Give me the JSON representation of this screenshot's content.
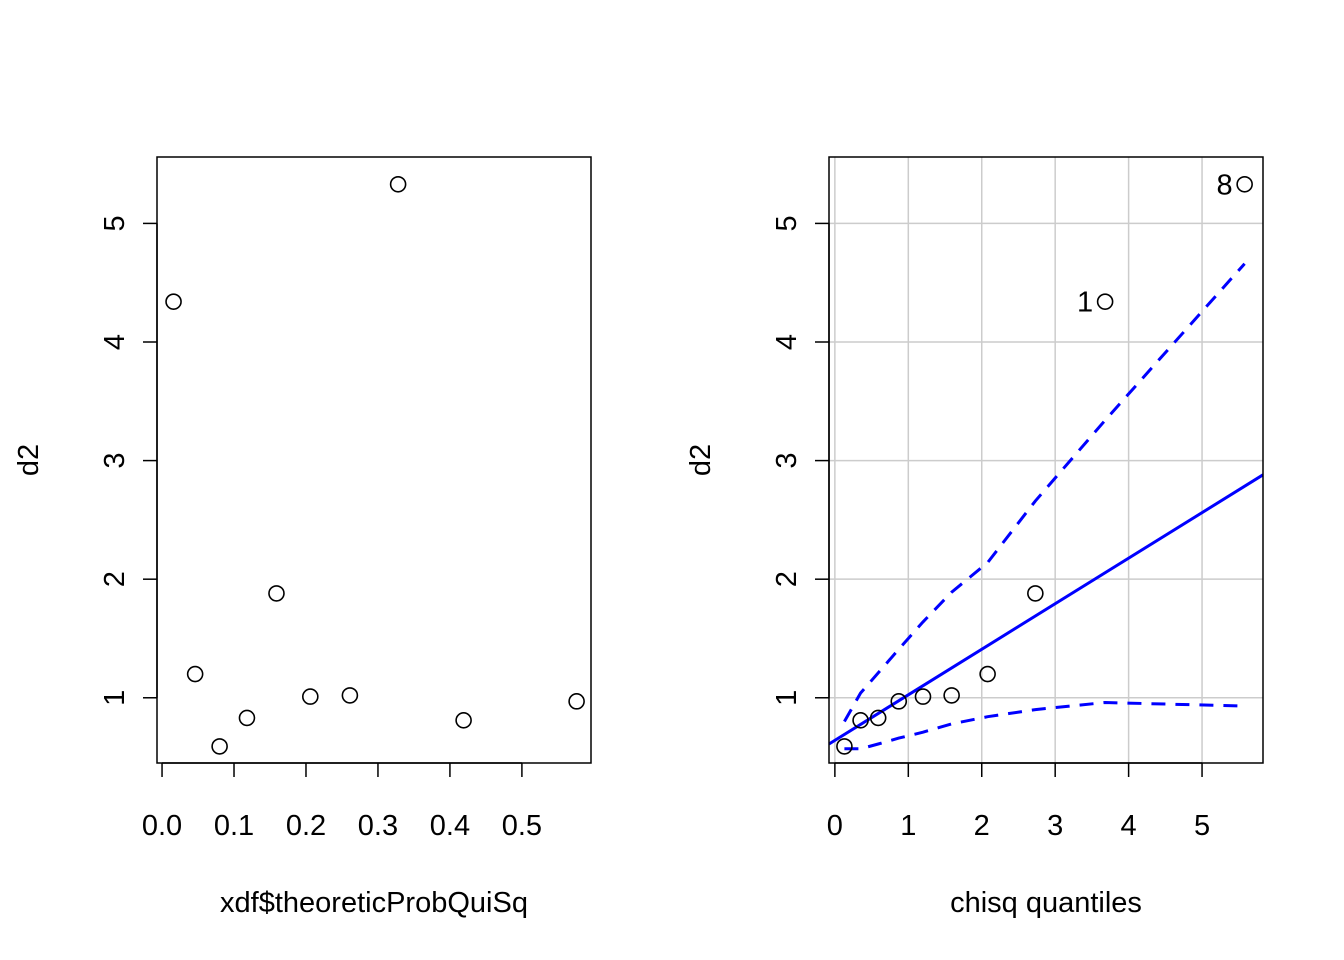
{
  "chart_data": [
    {
      "type": "scatter",
      "xlabel": "xdf$theoreticProbQuiSq",
      "ylabel": "d2",
      "xlim": [
        -0.007,
        0.596
      ],
      "ylim": [
        0.45,
        5.56
      ],
      "xticks": [
        0.0,
        0.1,
        0.2,
        0.3,
        0.4,
        0.5
      ],
      "xtick_labels": [
        "0.0",
        "0.1",
        "0.2",
        "0.3",
        "0.4",
        "0.5"
      ],
      "yticks": [
        1,
        2,
        3,
        4,
        5
      ],
      "ytick_labels": [
        "1",
        "2",
        "3",
        "4",
        "5"
      ],
      "grid": false,
      "points": [
        {
          "x": 0.016,
          "y": 4.34
        },
        {
          "x": 0.046,
          "y": 1.2
        },
        {
          "x": 0.08,
          "y": 0.59
        },
        {
          "x": 0.118,
          "y": 0.83
        },
        {
          "x": 0.159,
          "y": 1.88
        },
        {
          "x": 0.206,
          "y": 1.01
        },
        {
          "x": 0.261,
          "y": 1.02
        },
        {
          "x": 0.328,
          "y": 5.33
        },
        {
          "x": 0.419,
          "y": 0.81
        },
        {
          "x": 0.576,
          "y": 0.97
        }
      ]
    },
    {
      "type": "scatter",
      "xlabel": "chisq quantiles",
      "ylabel": "d2",
      "xlim": [
        -0.08,
        5.83
      ],
      "ylim": [
        0.45,
        5.56
      ],
      "xticks": [
        0,
        1,
        2,
        3,
        4,
        5
      ],
      "xtick_labels": [
        "0",
        "1",
        "2",
        "3",
        "4",
        "5"
      ],
      "yticks": [
        1,
        2,
        3,
        4,
        5
      ],
      "ytick_labels": [
        "1",
        "2",
        "3",
        "4",
        "5"
      ],
      "grid": true,
      "points": [
        {
          "x": 0.13,
          "y": 0.59
        },
        {
          "x": 0.35,
          "y": 0.81
        },
        {
          "x": 0.59,
          "y": 0.83
        },
        {
          "x": 0.87,
          "y": 0.97
        },
        {
          "x": 1.2,
          "y": 1.01
        },
        {
          "x": 1.59,
          "y": 1.02
        },
        {
          "x": 2.08,
          "y": 1.2
        },
        {
          "x": 2.73,
          "y": 1.88
        },
        {
          "x": 3.68,
          "y": 4.34,
          "label": "1"
        },
        {
          "x": 5.58,
          "y": 5.33,
          "label": "8"
        }
      ],
      "reference_line": {
        "color": "#0000FF",
        "style": "solid",
        "x": [
          -0.08,
          5.83
        ],
        "y": [
          0.61,
          2.88
        ]
      },
      "confidence_band": {
        "color": "#0000FF",
        "style": "dashed",
        "upper": {
          "x": [
            0.13,
            0.35,
            0.59,
            0.87,
            1.2,
            1.59,
            2.08,
            2.73,
            3.68,
            5.58
          ],
          "y": [
            0.8,
            1.04,
            1.21,
            1.41,
            1.64,
            1.89,
            2.14,
            2.66,
            3.34,
            4.66
          ]
        },
        "lower": {
          "x": [
            0.13,
            0.35,
            0.59,
            0.87,
            1.2,
            1.59,
            2.08,
            2.73,
            3.68,
            5.58
          ],
          "y": [
            0.57,
            0.57,
            0.61,
            0.66,
            0.71,
            0.78,
            0.84,
            0.9,
            0.96,
            0.93
          ]
        }
      }
    }
  ]
}
